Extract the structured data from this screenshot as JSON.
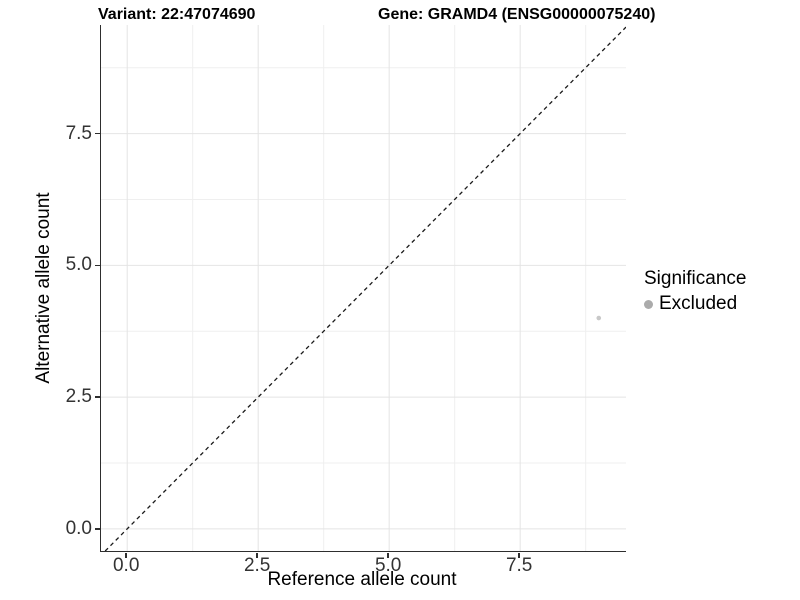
{
  "titles": {
    "variant": "Variant: 22:47074690",
    "gene": "Gene: GRAMD4 (ENSG00000075240)"
  },
  "chart_data": {
    "type": "scatter",
    "title_left": "Variant: 22:47074690",
    "title_right": "Gene: GRAMD4 (ENSG00000075240)",
    "xlabel": "Reference allele count",
    "ylabel": "Alternative allele count",
    "xlim": [
      -0.5,
      9.52
    ],
    "ylim": [
      -0.42,
      9.56
    ],
    "x_ticks": [
      0,
      2.5,
      5,
      7.5
    ],
    "x_tick_labels": [
      "0.0",
      "2.5",
      "5.0",
      "7.5"
    ],
    "y_ticks": [
      0,
      2.5,
      5,
      7.5
    ],
    "y_tick_labels": [
      "0.0",
      "2.5",
      "5.0",
      "7.5"
    ],
    "x_minor_ticks": [
      1.25,
      3.75,
      6.25,
      8.75
    ],
    "y_minor_ticks": [
      1.25,
      3.75,
      6.25,
      8.75
    ],
    "grid": true,
    "series": [
      {
        "name": "Excluded",
        "color": "#c8c8c8",
        "point_radius": 2.3,
        "points": [
          {
            "x": 9,
            "y": 4
          }
        ]
      }
    ],
    "reference_line": {
      "slope": 1,
      "intercept": 0,
      "style": "dashed",
      "color": "#1a1a1a"
    },
    "legend": {
      "title": "Significance",
      "position": "right",
      "entries": [
        {
          "label": "Excluded",
          "color": "#ababab"
        }
      ]
    },
    "colors": {
      "background": "#ffffff",
      "axis_line": "#2e2e2e",
      "grid_major": "#e4e4e4",
      "grid_minor": "#efefef",
      "tick_text": "#333333"
    }
  }
}
